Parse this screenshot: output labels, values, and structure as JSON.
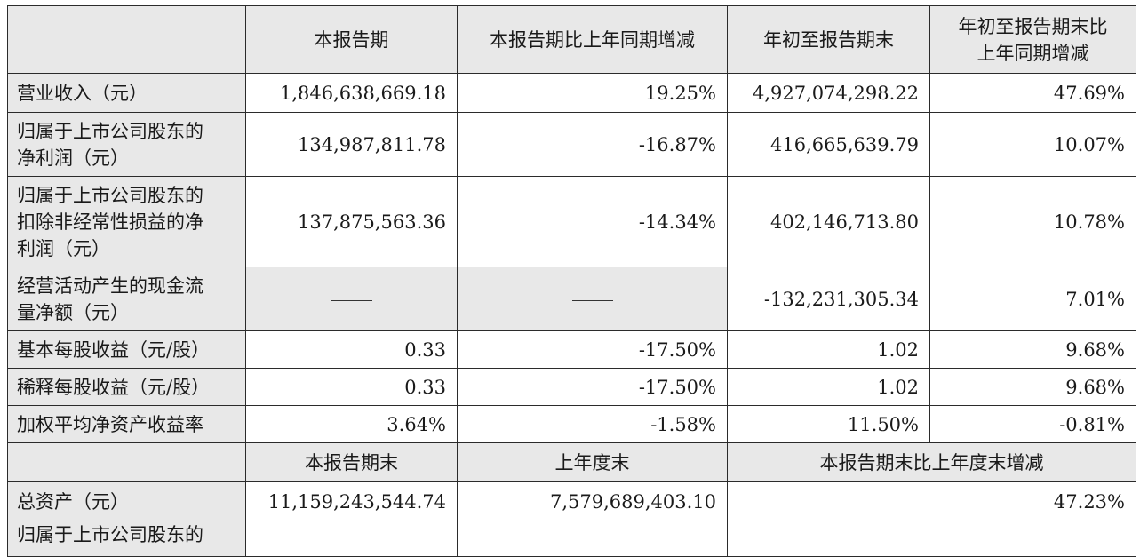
{
  "header": {
    "blank": "",
    "col1": "本报告期",
    "col2": "本报告期比上年同期增减",
    "col3": "年初至报告期末",
    "col4": "年初至报告期末比\n上年同期增减"
  },
  "rows": [
    {
      "label": "营业收入（元）",
      "v1": "1,846,638,669.18",
      "v2": "19.25%",
      "v3": "4,927,074,298.22",
      "v4": "47.69%"
    },
    {
      "label": "归属于上市公司股东的\n净利润（元）",
      "v1": "134,987,811.78",
      "v2": "-16.87%",
      "v3": "416,665,639.79",
      "v4": "10.07%"
    },
    {
      "label": "归属于上市公司股东的\n扣除非经常性损益的净\n利润（元）",
      "v1": "137,875,563.36",
      "v2": "-14.34%",
      "v3": "402,146,713.80",
      "v4": "10.78%"
    },
    {
      "label": "经营活动产生的现金流\n量净额（元）",
      "v1": "——",
      "v2": "——",
      "v3": "-132,231,305.34",
      "v4": "7.01%"
    },
    {
      "label": "基本每股收益（元/股）",
      "v1": "0.33",
      "v2": "-17.50%",
      "v3": "1.02",
      "v4": "9.68%"
    },
    {
      "label": "稀释每股收益（元/股）",
      "v1": "0.33",
      "v2": "-17.50%",
      "v3": "1.02",
      "v4": "9.68%"
    },
    {
      "label": "加权平均净资产收益率",
      "v1": "3.64%",
      "v2": "-1.58%",
      "v3": "11.50%",
      "v4": "-0.81%"
    }
  ],
  "subheader": {
    "blank": "",
    "col1": "本报告期末",
    "col2": "上年度末",
    "col3": "本报告期末比上年度末增减"
  },
  "assets_row": {
    "label": "总资产（元）",
    "v1": "11,159,243,544.74",
    "v2": "7,579,689,403.10",
    "v3": "47.23%"
  },
  "partial_row": {
    "label": "归属于上市公司股东的"
  }
}
